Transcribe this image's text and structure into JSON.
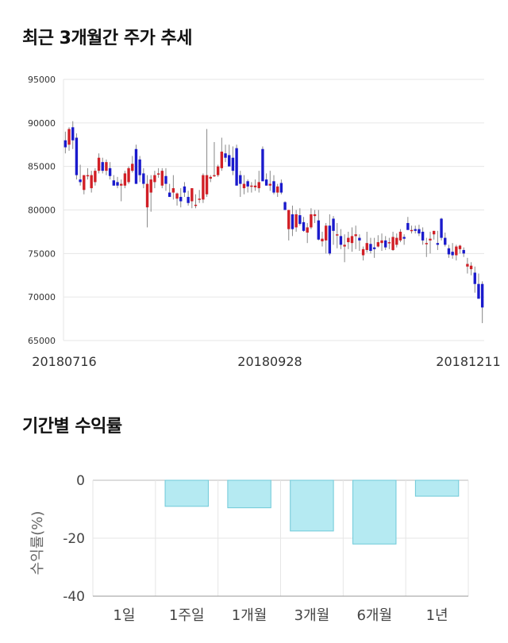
{
  "sections": {
    "stock_title": "최근 3개월간 주가 추세",
    "returns_title": "기간별 수익률"
  },
  "chart_data": [
    {
      "type": "candlestick",
      "title": "최근 3개월간 주가 추세",
      "y_ticks": [
        "95000",
        "90000",
        "85000",
        "80000",
        "75000",
        "70000",
        "65000"
      ],
      "ylim": [
        65000,
        95000
      ],
      "x_labels": [
        "20180716",
        "20180928",
        "20181211"
      ],
      "grid": true,
      "colors": {
        "up": "#d11f26",
        "down": "#1a1acc",
        "wick": "#888888",
        "grid": "#e6e6e6"
      },
      "candles": [
        [
          88000,
          89000,
          86500,
          87200
        ],
        [
          87500,
          89500,
          86800,
          89300
        ],
        [
          89500,
          90200,
          87000,
          88000
        ],
        [
          88300,
          88800,
          83500,
          84000
        ],
        [
          83500,
          85200,
          82800,
          83200
        ],
        [
          82300,
          84000,
          81800,
          84000
        ],
        [
          84000,
          84800,
          83500,
          84000
        ],
        [
          82500,
          84500,
          82000,
          84000
        ],
        [
          83200,
          84800,
          82800,
          84500
        ],
        [
          84500,
          86500,
          84200,
          86000
        ],
        [
          85500,
          86000,
          84200,
          84500
        ],
        [
          84500,
          85800,
          84000,
          85500
        ],
        [
          84800,
          85500,
          83500,
          83900
        ],
        [
          83400,
          84000,
          82800,
          82800
        ],
        [
          83200,
          83800,
          82500,
          82800
        ],
        [
          82800,
          83500,
          81000,
          83000
        ],
        [
          82800,
          84500,
          82500,
          84200
        ],
        [
          83200,
          85000,
          83000,
          84800
        ],
        [
          84500,
          86200,
          84300,
          85300
        ],
        [
          87000,
          87500,
          83000,
          83000
        ],
        [
          85800,
          86200,
          83200,
          84000
        ],
        [
          84200,
          84800,
          82500,
          83000
        ],
        [
          80300,
          84000,
          78000,
          83000
        ],
        [
          82000,
          84000,
          79800,
          83500
        ],
        [
          83200,
          84500,
          82500,
          84000
        ],
        [
          84200,
          84800,
          83700,
          84200
        ],
        [
          82800,
          84800,
          82500,
          84500
        ],
        [
          83900,
          84800,
          82200,
          83000
        ],
        [
          82000,
          83000,
          81500,
          81500
        ],
        [
          82000,
          84000,
          81200,
          82500
        ],
        [
          81300,
          82000,
          80500,
          81900
        ],
        [
          81500,
          82500,
          80300,
          81000
        ],
        [
          82700,
          83200,
          81500,
          82000
        ],
        [
          81500,
          82200,
          80500,
          80800
        ],
        [
          81000,
          82500,
          80200,
          82500
        ],
        [
          80600,
          81800,
          80200,
          80600
        ],
        [
          81300,
          82300,
          80800,
          81300
        ],
        [
          81200,
          84200,
          80800,
          84000
        ],
        [
          81800,
          89300,
          81500,
          84000
        ],
        [
          83600,
          84000,
          83200,
          83800
        ],
        [
          84000,
          87800,
          83800,
          84000
        ],
        [
          84000,
          85200,
          83800,
          85000
        ],
        [
          84800,
          88300,
          84500,
          86700
        ],
        [
          86500,
          87500,
          85500,
          86000
        ],
        [
          86300,
          87500,
          85300,
          85000
        ],
        [
          86000,
          87300,
          84000,
          84500
        ],
        [
          87100,
          87500,
          82800,
          82800
        ],
        [
          84000,
          84500,
          81500,
          83000
        ],
        [
          82500,
          84000,
          81800,
          83000
        ],
        [
          83300,
          83500,
          82000,
          82700
        ],
        [
          82800,
          83200,
          82000,
          82800
        ],
        [
          82600,
          83500,
          82200,
          82800
        ],
        [
          82500,
          84500,
          82000,
          83200
        ],
        [
          87000,
          87300,
          83300,
          83300
        ],
        [
          83500,
          84200,
          82800,
          82800
        ],
        [
          82800,
          84500,
          82200,
          83000
        ],
        [
          83300,
          84000,
          81800,
          82000
        ],
        [
          82000,
          83000,
          81500,
          82700
        ],
        [
          83100,
          83500,
          81800,
          82000
        ],
        [
          80900,
          81000,
          80000,
          80000
        ],
        [
          77800,
          80000,
          76500,
          80000
        ],
        [
          79500,
          80500,
          77000,
          77800
        ],
        [
          78000,
          80000,
          77500,
          79500
        ],
        [
          79400,
          80200,
          78200,
          78400
        ],
        [
          78600,
          79200,
          77500,
          77600
        ],
        [
          77400,
          78500,
          76200,
          78000
        ],
        [
          78000,
          80200,
          77800,
          79500
        ],
        [
          79300,
          80000,
          78500,
          79500
        ],
        [
          78800,
          80000,
          76500,
          76600
        ],
        [
          76400,
          77500,
          75800,
          76700
        ],
        [
          76500,
          78500,
          75000,
          78200
        ],
        [
          78200,
          79500,
          74800,
          75000
        ],
        [
          79000,
          79300,
          76000,
          77600
        ],
        [
          77200,
          78500,
          75600,
          77200
        ],
        [
          77000,
          77800,
          75500,
          76000
        ],
        [
          75800,
          77200,
          74000,
          76000
        ],
        [
          76300,
          77500,
          75500,
          76800
        ],
        [
          76200,
          78000,
          75200,
          77000
        ],
        [
          77000,
          78200,
          75500,
          77200
        ],
        [
          76800,
          77200,
          75300,
          76500
        ],
        [
          74800,
          75800,
          74200,
          75500
        ],
        [
          75400,
          77500,
          75100,
          76200
        ],
        [
          76100,
          76800,
          75000,
          75300
        ],
        [
          75700,
          76800,
          74500,
          75500
        ],
        [
          75800,
          77100,
          75700,
          76300
        ],
        [
          76200,
          77300,
          75300,
          76500
        ],
        [
          76500,
          77000,
          75400,
          75700
        ],
        [
          76300,
          76800,
          75500,
          76300
        ],
        [
          75400,
          77500,
          75300,
          76900
        ],
        [
          76000,
          77300,
          75700,
          76800
        ],
        [
          76500,
          77800,
          76300,
          77500
        ],
        [
          76900,
          77200,
          76000,
          76700
        ],
        [
          78500,
          79200,
          77800,
          77700
        ],
        [
          77600,
          78200,
          77300,
          77700
        ],
        [
          77800,
          78200,
          77300,
          77600
        ],
        [
          77800,
          78300,
          77000,
          77300
        ],
        [
          77500,
          78000,
          76000,
          76500
        ],
        [
          76200,
          76800,
          74600,
          76200
        ],
        [
          76500,
          77500,
          75000,
          76700
        ],
        [
          77200,
          77600,
          76600,
          77600
        ],
        [
          76200,
          77600,
          75400,
          76000
        ],
        [
          79000,
          79100,
          76500,
          76800
        ],
        [
          76800,
          77400,
          75800,
          76000
        ],
        [
          75600,
          76000,
          74500,
          74900
        ],
        [
          75200,
          76200,
          74400,
          74800
        ],
        [
          74800,
          76000,
          74200,
          75800
        ],
        [
          75500,
          76000,
          75000,
          75900
        ],
        [
          75400,
          75700,
          74600,
          75000
        ],
        [
          73500,
          74500,
          72700,
          73800
        ],
        [
          73200,
          74000,
          72500,
          73600
        ],
        [
          72800,
          73500,
          70500,
          71500
        ],
        [
          71500,
          72700,
          70000,
          69800
        ],
        [
          71500,
          71800,
          67000,
          68800
        ]
      ]
    },
    {
      "type": "bar",
      "title": "기간별 수익률",
      "categories": [
        "1일",
        "1주일",
        "1개월",
        "3개월",
        "6개월",
        "1년"
      ],
      "values": [
        0,
        -9,
        -9.5,
        -17.5,
        -22,
        -5.5
      ],
      "ylabel": "수익률(%)",
      "y_ticks": [
        "0",
        "-20",
        "-40"
      ],
      "ylim": [
        -40,
        0
      ],
      "grid": true,
      "colors": {
        "bar_fill": "#b5eaf2",
        "bar_stroke": "#6ec9d8",
        "grid": "#e6e6e6",
        "axis": "#555555"
      }
    }
  ]
}
